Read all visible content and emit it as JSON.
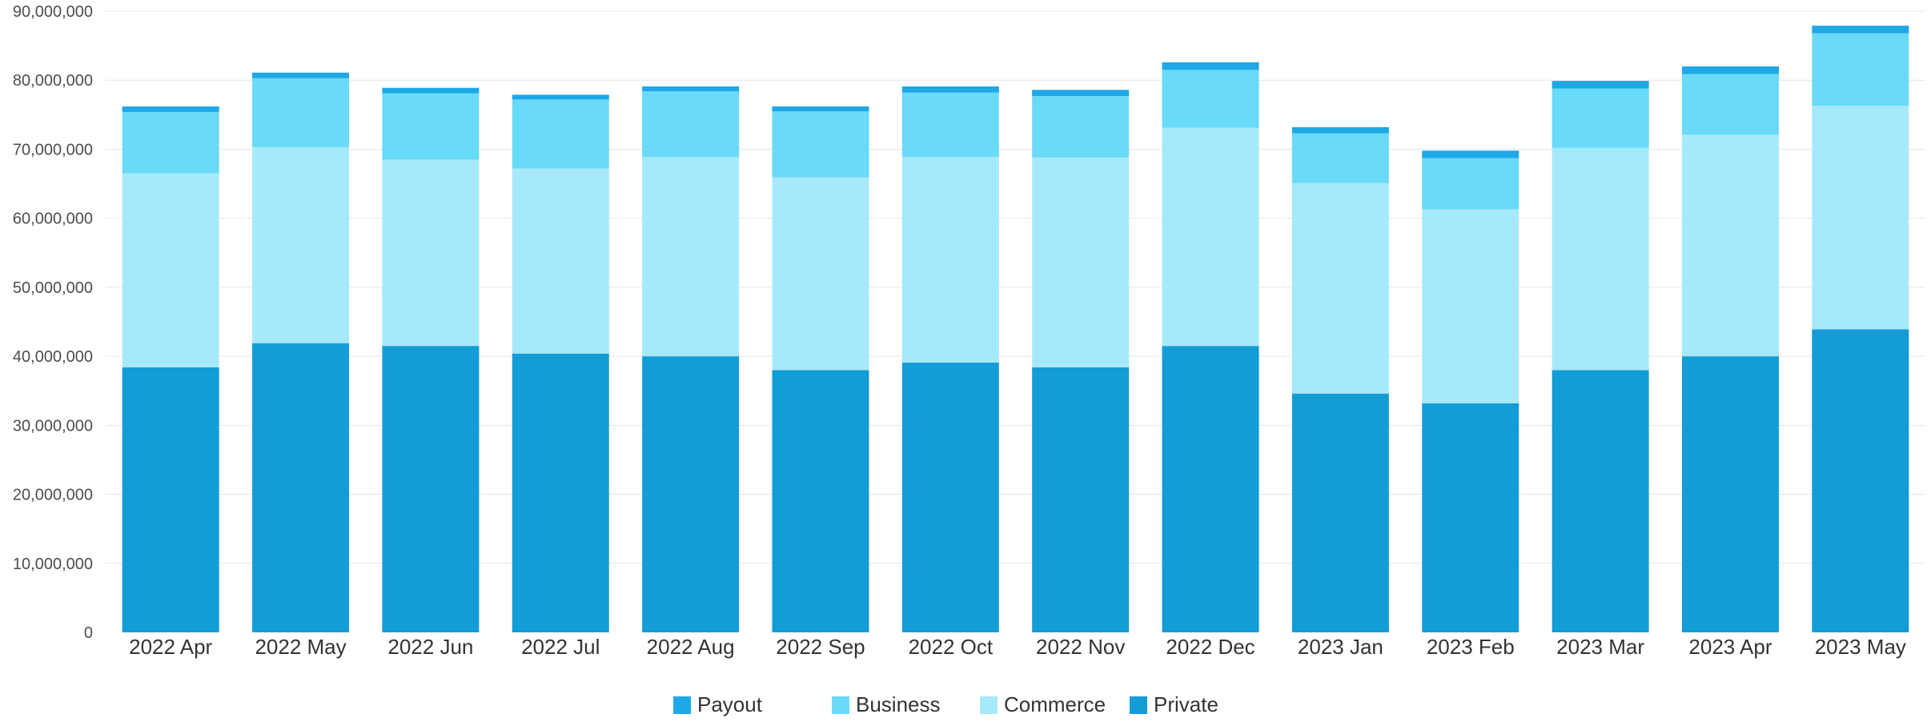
{
  "chart_data": {
    "type": "bar",
    "stacked": true,
    "title": "",
    "xlabel": "",
    "ylabel": "",
    "categories": [
      "2022 Apr",
      "2022 May",
      "2022 Jun",
      "2022 Jul",
      "2022 Aug",
      "2022 Sep",
      "2022 Oct",
      "2022 Nov",
      "2022 Dec",
      "2023 Jan",
      "2023 Feb",
      "2023 Mar",
      "2023 Apr",
      "2023 May"
    ],
    "ylim": [
      0,
      90000000
    ],
    "yticks": [
      0,
      10000000,
      20000000,
      30000000,
      40000000,
      50000000,
      60000000,
      70000000,
      80000000,
      90000000
    ],
    "ytick_labels": [
      "0",
      "10,000,000",
      "20,000,000",
      "30,000,000",
      "40,000,000",
      "50,000,000",
      "60,000,000",
      "70,000,000",
      "80,000,000",
      "90,000,000"
    ],
    "grid": true,
    "legend_position": "bottom",
    "series": [
      {
        "name": "Private",
        "color": "#149cd6",
        "values": [
          38400000,
          41900000,
          41500000,
          40400000,
          40000000,
          38000000,
          39100000,
          38400000,
          41500000,
          34600000,
          33200000,
          38000000,
          40000000,
          43900000
        ]
      },
      {
        "name": "Commerce",
        "color": "#a6e9fb",
        "values": [
          28100000,
          28400000,
          27000000,
          26800000,
          28900000,
          27900000,
          29800000,
          30400000,
          31600000,
          30500000,
          28100000,
          32200000,
          32100000,
          32400000
        ]
      },
      {
        "name": "Business",
        "color": "#69daf8",
        "values": [
          8900000,
          10000000,
          9600000,
          10000000,
          9500000,
          9600000,
          9300000,
          8900000,
          8400000,
          7200000,
          7400000,
          8600000,
          8800000,
          10500000
        ]
      },
      {
        "name": "Payout",
        "color": "#1ea8e6",
        "values": [
          800000,
          800000,
          800000,
          700000,
          700000,
          700000,
          900000,
          900000,
          1100000,
          900000,
          1100000,
          1100000,
          1100000,
          1100000
        ]
      }
    ],
    "legend_order": [
      "Payout",
      "Business",
      "Commerce",
      "Private"
    ]
  }
}
